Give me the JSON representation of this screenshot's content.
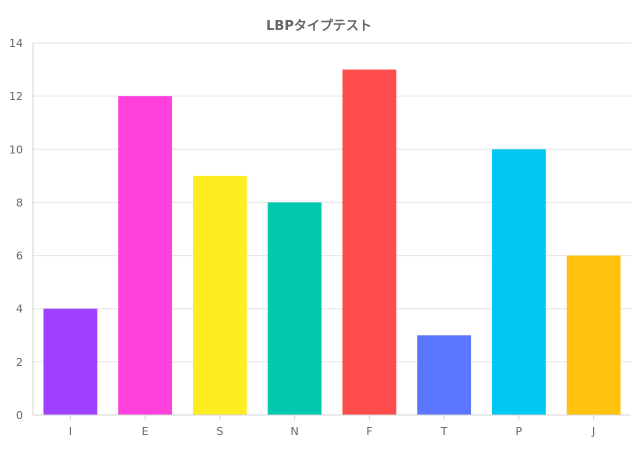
{
  "chart_data": {
    "type": "bar",
    "title": "LBPタイプテスト",
    "xlabel": "",
    "ylabel": "",
    "categories": [
      "I",
      "E",
      "S",
      "N",
      "F",
      "T",
      "P",
      "J"
    ],
    "values": [
      4,
      12,
      9,
      8,
      13,
      3,
      10,
      6
    ],
    "colors": [
      "#a040ff",
      "#ff40dd",
      "#ffed22",
      "#00c9ae",
      "#ff4d4d",
      "#5b76ff",
      "#00c8f2",
      "#ffc20e"
    ],
    "ylim": [
      0,
      14
    ],
    "yticks": [
      0,
      2,
      4,
      6,
      8,
      10,
      12,
      14
    ],
    "grid": true,
    "legend": "none"
  }
}
